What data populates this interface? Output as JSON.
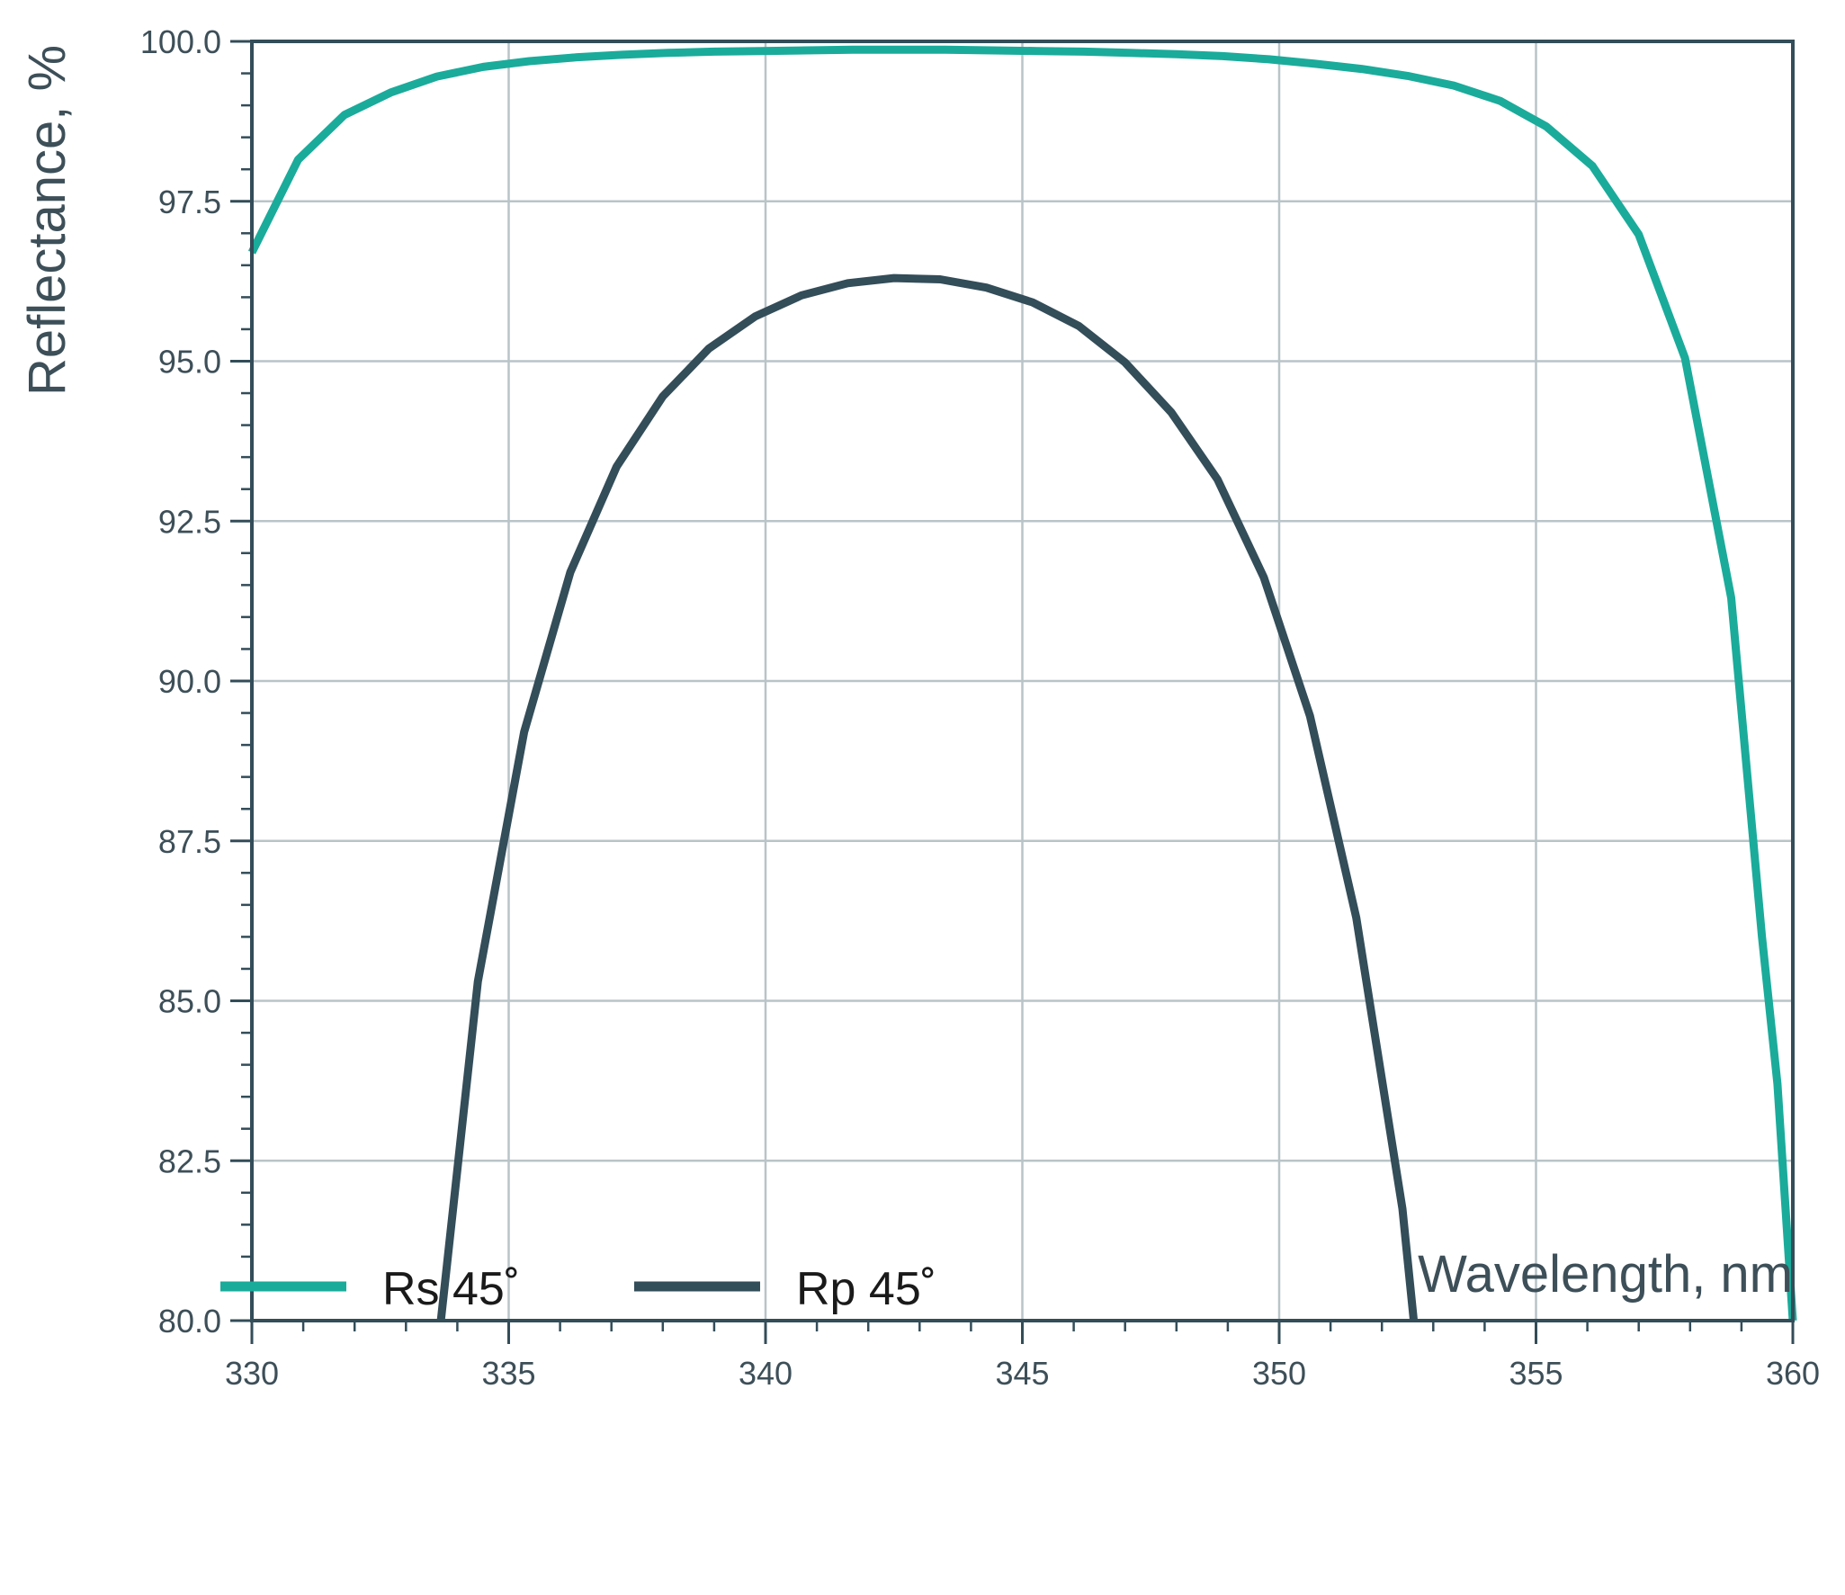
{
  "chart_data": {
    "type": "line",
    "title": "",
    "xlabel": "Wavelength, nm",
    "ylabel": "Reflectance, %",
    "xlim": [
      330,
      360
    ],
    "ylim": [
      80,
      100
    ],
    "x_ticks": [
      "330",
      "335",
      "340",
      "345",
      "350",
      "355",
      "360"
    ],
    "y_ticks": [
      "80.0",
      "82.5",
      "85.0",
      "87.5",
      "90.0",
      "92.5",
      "95.0",
      "97.5",
      "100.0"
    ],
    "grid": true,
    "legend_position": "bottom-left",
    "series": [
      {
        "name": "Rs 45˚",
        "color": "#1aab9b",
        "points": [
          [
            330.0,
            96.7
          ],
          [
            330.9,
            98.15
          ],
          [
            331.8,
            98.85
          ],
          [
            332.7,
            99.2
          ],
          [
            333.6,
            99.45
          ],
          [
            334.5,
            99.6
          ],
          [
            335.4,
            99.69
          ],
          [
            336.3,
            99.75
          ],
          [
            337.2,
            99.79
          ],
          [
            338.1,
            99.82
          ],
          [
            339.0,
            99.84
          ],
          [
            339.9,
            99.85
          ],
          [
            340.8,
            99.86
          ],
          [
            341.7,
            99.87
          ],
          [
            342.6,
            99.87
          ],
          [
            343.5,
            99.87
          ],
          [
            344.4,
            99.86
          ],
          [
            345.3,
            99.85
          ],
          [
            346.2,
            99.84
          ],
          [
            347.1,
            99.82
          ],
          [
            348.0,
            99.8
          ],
          [
            348.9,
            99.77
          ],
          [
            349.8,
            99.72
          ],
          [
            350.7,
            99.65
          ],
          [
            351.6,
            99.57
          ],
          [
            352.5,
            99.46
          ],
          [
            353.4,
            99.31
          ],
          [
            354.3,
            99.07
          ],
          [
            355.2,
            98.67
          ],
          [
            356.1,
            98.05
          ],
          [
            357.0,
            96.98
          ],
          [
            357.9,
            95.05
          ],
          [
            358.8,
            91.3
          ],
          [
            359.4,
            86.0
          ],
          [
            359.7,
            83.7
          ],
          [
            360.0,
            80.0
          ]
        ]
      },
      {
        "name": "Rp 45˚",
        "color": "#334d59",
        "points": [
          [
            333.68,
            80.0
          ],
          [
            334.4,
            85.3
          ],
          [
            335.3,
            89.2
          ],
          [
            336.2,
            91.7
          ],
          [
            337.1,
            93.35
          ],
          [
            338.0,
            94.45
          ],
          [
            338.9,
            95.2
          ],
          [
            339.8,
            95.7
          ],
          [
            340.7,
            96.03
          ],
          [
            341.6,
            96.22
          ],
          [
            342.5,
            96.3
          ],
          [
            343.4,
            96.28
          ],
          [
            344.3,
            96.15
          ],
          [
            345.2,
            95.92
          ],
          [
            346.1,
            95.55
          ],
          [
            347.0,
            94.98
          ],
          [
            347.9,
            94.2
          ],
          [
            348.8,
            93.15
          ],
          [
            349.7,
            91.62
          ],
          [
            350.6,
            89.45
          ],
          [
            351.5,
            86.3
          ],
          [
            352.4,
            81.75
          ],
          [
            352.62,
            80.0
          ]
        ]
      }
    ]
  }
}
